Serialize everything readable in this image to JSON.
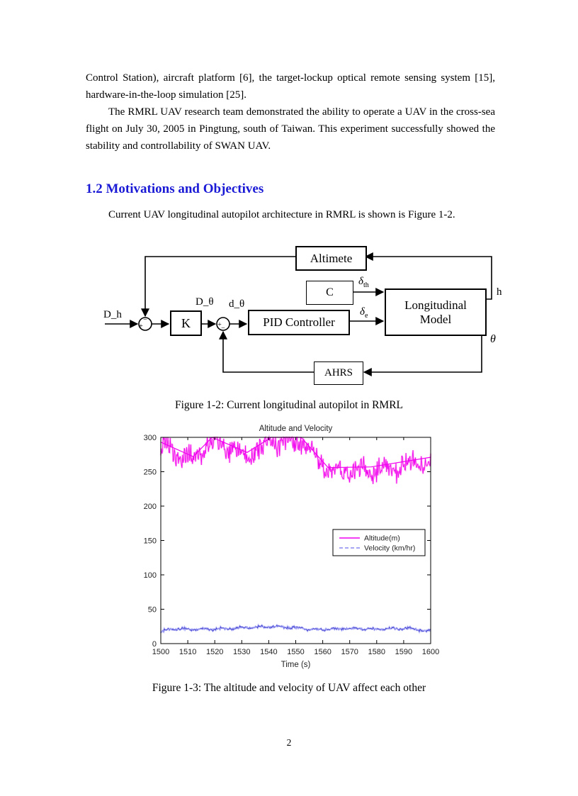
{
  "page": {
    "number": "2",
    "colors": {
      "heading": "#1A1AD6",
      "text": "#000000"
    }
  },
  "content": {
    "paragraph1": "Control Station), aircraft platform [6], the target-lockup optical remote sensing system [15], hardware-in-the-loop simulation [25].",
    "paragraph2": "The RMRL UAV research team demonstrated the ability to operate a UAV in the cross-sea flight on July 30, 2005 in Pingtung, south of Taiwan. This experiment successfully showed the stability and controllability of SWAN UAV.",
    "heading": "1.2 Motivations and Objectives",
    "paragraph3": "Current UAV longitudinal autopilot architecture in RMRL is shown is Figure 1-2.",
    "caption_fig2": "Figure 1-2: Current longitudinal autopilot in RMRL",
    "caption_fig3": "Figure 1-3: The altitude and velocity of UAV affect each other"
  },
  "diagram": {
    "boxes": {
      "altimeter": "Altimete",
      "c": "C",
      "longitudinal_model": "Longitudinal Model",
      "k": "K",
      "pid": "PID Controller",
      "ahrs": "AHRS"
    },
    "signals": {
      "input": "D_h",
      "d_theta_cmd": "D_θ",
      "d_theta_err": "d_θ",
      "delta_th_base": "δ",
      "delta_th_sub": "th",
      "delta_e_base": "δ",
      "delta_e_sub": "e",
      "h": "h",
      "theta": "θ"
    },
    "junctions": {
      "j1_plus": "+",
      "j1_minus": "−",
      "j2_plus": "+",
      "j2_minus": "−"
    }
  },
  "chart_data": {
    "type": "line",
    "title": "Altitude and Velocity",
    "xlabel": "Time (s)",
    "ylabel": "",
    "xlim": [
      1500,
      1600
    ],
    "ylim": [
      0,
      300
    ],
    "x_ticks": [
      1500,
      1510,
      1520,
      1530,
      1540,
      1550,
      1560,
      1570,
      1580,
      1590,
      1600
    ],
    "y_ticks": [
      0,
      50,
      100,
      150,
      200,
      250,
      300
    ],
    "grid": false,
    "legend": {
      "position": "middle-right",
      "entries": [
        {
          "label": "Altitude(m)",
          "color": "#F000F0",
          "style": "solid"
        },
        {
          "label": "Velocity (km/hr)",
          "color": "#8888F0",
          "style": "dashed"
        }
      ]
    },
    "series": [
      {
        "name": "Altitude(m)",
        "unit": "m",
        "color": "#F000F0",
        "halo_color": "#FF9CF0",
        "style": "solid",
        "approx_range": [
          230,
          300
        ],
        "trend_points": [
          [
            1500,
            293
          ],
          [
            1512,
            272
          ],
          [
            1519,
            300
          ],
          [
            1532,
            278
          ],
          [
            1541,
            300
          ],
          [
            1552,
            300
          ],
          [
            1562,
            256
          ],
          [
            1578,
            257
          ],
          [
            1600,
            271
          ]
        ],
        "noise": {
          "amplitude": 20,
          "bias": -6,
          "wave_amp": 7,
          "wave_period": 9,
          "samples": 460,
          "seed": 42
        }
      },
      {
        "name": "Velocity (km/hr)",
        "unit": "km/hr",
        "color": "#3838C8",
        "halo_color": "#A8A8F8",
        "style": "dashed",
        "approx_range": [
          14,
          27
        ],
        "trend_points": [
          [
            1500,
            17
          ],
          [
            1503,
            21
          ],
          [
            1515,
            21
          ],
          [
            1525,
            22
          ],
          [
            1542,
            25
          ],
          [
            1550,
            23
          ],
          [
            1557,
            20
          ],
          [
            1568,
            22
          ],
          [
            1580,
            21
          ],
          [
            1592,
            22
          ],
          [
            1600,
            18
          ]
        ],
        "noise": {
          "amplitude": 2.2,
          "bias": 0,
          "wave_amp": 1,
          "wave_period": 7,
          "samples": 380,
          "seed": 9
        }
      }
    ]
  }
}
